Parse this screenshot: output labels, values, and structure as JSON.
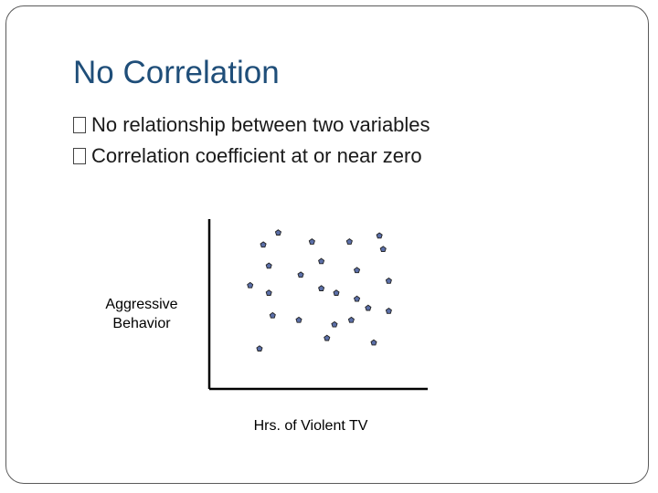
{
  "slide": {
    "title": "No Correlation",
    "bullets": [
      "No relationship between two variables",
      "Correlation coefficient at or near zero"
    ]
  },
  "chart_data": {
    "type": "scatter",
    "title": "",
    "xlabel": "Hrs. of Violent TV",
    "ylabel_lines": [
      "Aggressive",
      "Behavior"
    ],
    "ylabel": "Aggressive Behavior",
    "xlim": [
      0,
      10
    ],
    "ylim": [
      0,
      10
    ],
    "grid": false,
    "ticks": false,
    "marker_color": "#5b6fa8",
    "points": [
      {
        "x": 2.9,
        "y": 9.4
      },
      {
        "x": 4.7,
        "y": 8.8
      },
      {
        "x": 6.7,
        "y": 8.8
      },
      {
        "x": 8.3,
        "y": 9.2
      },
      {
        "x": 2.1,
        "y": 8.6
      },
      {
        "x": 8.5,
        "y": 8.3
      },
      {
        "x": 5.2,
        "y": 7.5
      },
      {
        "x": 2.4,
        "y": 7.2
      },
      {
        "x": 7.1,
        "y": 6.9
      },
      {
        "x": 4.1,
        "y": 6.6
      },
      {
        "x": 8.8,
        "y": 6.2
      },
      {
        "x": 1.4,
        "y": 5.9
      },
      {
        "x": 5.2,
        "y": 5.7
      },
      {
        "x": 2.4,
        "y": 5.4
      },
      {
        "x": 6.0,
        "y": 5.4
      },
      {
        "x": 7.1,
        "y": 5.0
      },
      {
        "x": 7.7,
        "y": 4.4
      },
      {
        "x": 8.8,
        "y": 4.2
      },
      {
        "x": 2.6,
        "y": 3.9
      },
      {
        "x": 4.0,
        "y": 3.6
      },
      {
        "x": 5.9,
        "y": 3.3
      },
      {
        "x": 6.8,
        "y": 3.6
      },
      {
        "x": 5.5,
        "y": 2.4
      },
      {
        "x": 8.0,
        "y": 2.1
      },
      {
        "x": 1.9,
        "y": 1.7
      }
    ]
  }
}
